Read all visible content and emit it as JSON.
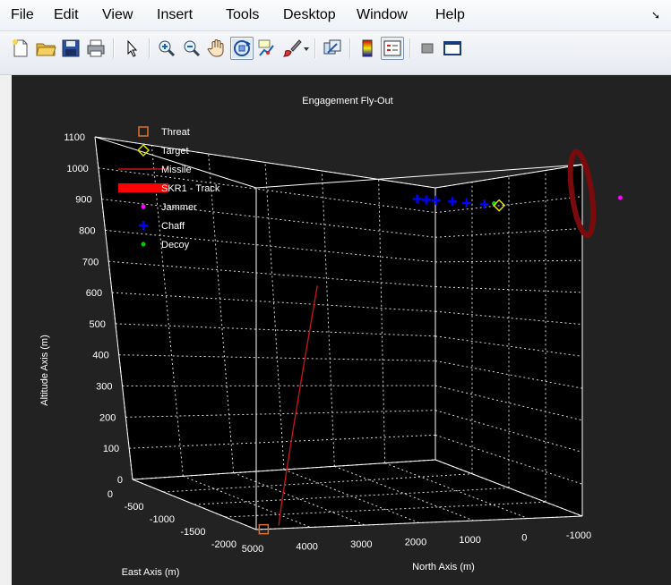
{
  "menu": {
    "file": "File",
    "edit": "Edit",
    "view": "View",
    "insert": "Insert",
    "tools": "Tools",
    "desktop": "Desktop",
    "window": "Window",
    "help": "Help"
  },
  "toolbar": {
    "icons": [
      "new-figure-icon",
      "open-icon",
      "save-icon",
      "print-icon",
      "pointer-icon",
      "zoom-in-icon",
      "zoom-out-icon",
      "pan-icon",
      "rotate-3d-icon",
      "data-cursor-icon",
      "brush-icon",
      "brush-dropdown-icon",
      "link-plot-icon",
      "colorbar-icon",
      "legend-icon",
      "hide-plot-tools-icon",
      "show-plot-tools-icon"
    ],
    "active": [
      "rotate-3d-icon",
      "legend-icon"
    ]
  },
  "chart_data": {
    "type": "line",
    "title": "Engagement Fly-Out",
    "xlabel": "East Axis (m)",
    "ylabel": "North Axis (m)",
    "zlabel": "Altitude Axis (m)",
    "grid": true,
    "legend_location": "top-left",
    "xlim": [
      -2000,
      0
    ],
    "ylim": [
      -1000,
      5000
    ],
    "zlim": [
      0,
      1100
    ],
    "xticks": [
      "0",
      "-500",
      "-1000",
      "-1500",
      "-2000"
    ],
    "yticks": [
      "5000",
      "4000",
      "3000",
      "2000",
      "1000",
      "0",
      "-1000"
    ],
    "zticks": [
      "0",
      "100",
      "200",
      "300",
      "400",
      "500",
      "600",
      "700",
      "800",
      "900",
      "1000",
      "1100"
    ],
    "legend": [
      "Threat",
      "Target",
      "Missile",
      "SKR1 - Track",
      "Jammer",
      "Chaff",
      "Decoy"
    ],
    "colors": {
      "background": "#000000",
      "figure": "#222222",
      "threat": "#e07030",
      "target": "#e0e000",
      "missile": "#c0161b",
      "track": "#ff0000",
      "track_ring": "#7a0a0c",
      "jammer": "#ff00ff",
      "chaff": "#0000ff",
      "decoy": "#00cc00"
    }
  }
}
